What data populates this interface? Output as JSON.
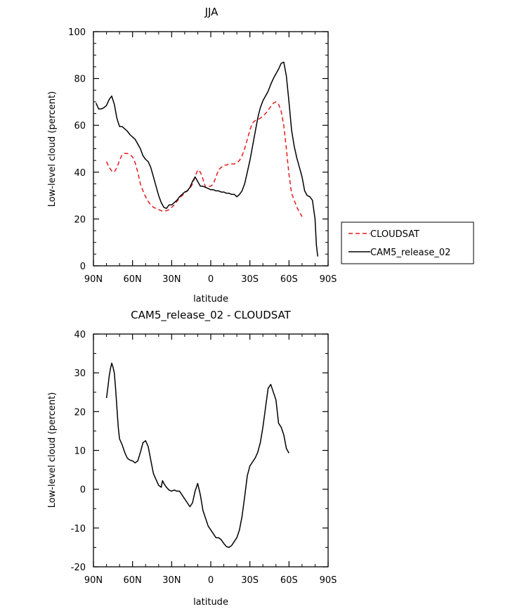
{
  "chart_data": [
    {
      "type": "line",
      "title": "JJA",
      "xlabel": "latitude",
      "ylabel": "Low-level cloud (percent)",
      "xlim": [
        90,
        -90
      ],
      "ylim": [
        0,
        100
      ],
      "xticks": [
        {
          "value": 90,
          "label": "90N"
        },
        {
          "value": 60,
          "label": "60N"
        },
        {
          "value": 30,
          "label": "30N"
        },
        {
          "value": 0,
          "label": "0"
        },
        {
          "value": -30,
          "label": "30S"
        },
        {
          "value": -60,
          "label": "60S"
        },
        {
          "value": -90,
          "label": "90S"
        }
      ],
      "yticks": [
        0,
        20,
        40,
        60,
        80,
        100
      ],
      "legend": "right",
      "series": [
        {
          "name": "CLOUDSAT",
          "color": "#e41a1c",
          "dash": "dashed",
          "points": [
            [
              80,
              44.5
            ],
            [
              78,
              42
            ],
            [
              76,
              40.5
            ],
            [
              74,
              40
            ],
            [
              72,
              42
            ],
            [
              70,
              45
            ],
            [
              68,
              47.5
            ],
            [
              66,
              48
            ],
            [
              64,
              48
            ],
            [
              62,
              47.5
            ],
            [
              60,
              46.5
            ],
            [
              58,
              44
            ],
            [
              56,
              40
            ],
            [
              54,
              35
            ],
            [
              52,
              32
            ],
            [
              50,
              29.5
            ],
            [
              48,
              27.5
            ],
            [
              46,
              26
            ],
            [
              44,
              25
            ],
            [
              42,
              24.5
            ],
            [
              40,
              24
            ],
            [
              38,
              23.5
            ],
            [
              36,
              23.5
            ],
            [
              34,
              23.5
            ],
            [
              32,
              24
            ],
            [
              30,
              25
            ],
            [
              28,
              26
            ],
            [
              26,
              27.5
            ],
            [
              24,
              29
            ],
            [
              22,
              30
            ],
            [
              20,
              31
            ],
            [
              18,
              32
            ],
            [
              16,
              33
            ],
            [
              14,
              35
            ],
            [
              12,
              38
            ],
            [
              10,
              41
            ],
            [
              8,
              40
            ],
            [
              6,
              37
            ],
            [
              4,
              33.5
            ],
            [
              2,
              34
            ],
            [
              0,
              34
            ],
            [
              -2,
              35
            ],
            [
              -4,
              38
            ],
            [
              -6,
              41
            ],
            [
              -8,
              42
            ],
            [
              -10,
              43
            ],
            [
              -12,
              43
            ],
            [
              -14,
              43.5
            ],
            [
              -16,
              43.5
            ],
            [
              -18,
              43.5
            ],
            [
              -20,
              44
            ],
            [
              -22,
              45
            ],
            [
              -24,
              47
            ],
            [
              -26,
              50
            ],
            [
              -28,
              54
            ],
            [
              -30,
              58
            ],
            [
              -32,
              61
            ],
            [
              -34,
              62
            ],
            [
              -36,
              62.5
            ],
            [
              -38,
              63
            ],
            [
              -40,
              64
            ],
            [
              -42,
              65
            ],
            [
              -44,
              66.5
            ],
            [
              -46,
              68
            ],
            [
              -48,
              69.5
            ],
            [
              -50,
              70
            ],
            [
              -52,
              69
            ],
            [
              -54,
              66
            ],
            [
              -56,
              60
            ],
            [
              -58,
              50
            ],
            [
              -60,
              39
            ],
            [
              -62,
              31
            ],
            [
              -64,
              28
            ],
            [
              -66,
              25
            ],
            [
              -68,
              23
            ],
            [
              -70,
              21
            ]
          ]
        },
        {
          "name": "CAM5_release_02",
          "color": "#000000",
          "dash": "solid",
          "points": [
            [
              88,
              69.5
            ],
            [
              86,
              67
            ],
            [
              84,
              67
            ],
            [
              82,
              67.5
            ],
            [
              80,
              68.5
            ],
            [
              78,
              71
            ],
            [
              76,
              72.5
            ],
            [
              74,
              69
            ],
            [
              72,
              63
            ],
            [
              70,
              59.5
            ],
            [
              68,
              59.5
            ],
            [
              66,
              58.5
            ],
            [
              64,
              57.5
            ],
            [
              62,
              56
            ],
            [
              60,
              55
            ],
            [
              58,
              54
            ],
            [
              56,
              52
            ],
            [
              54,
              50
            ],
            [
              52,
              47
            ],
            [
              50,
              45.5
            ],
            [
              48,
              44.5
            ],
            [
              46,
              42
            ],
            [
              44,
              38
            ],
            [
              42,
              34
            ],
            [
              40,
              30
            ],
            [
              38,
              27
            ],
            [
              36,
              25
            ],
            [
              34,
              24.5
            ],
            [
              32,
              26
            ],
            [
              30,
              26
            ],
            [
              28,
              27
            ],
            [
              26,
              28
            ],
            [
              24,
              29.5
            ],
            [
              22,
              30.5
            ],
            [
              20,
              31.5
            ],
            [
              18,
              32
            ],
            [
              16,
              33.5
            ],
            [
              14,
              36
            ],
            [
              12,
              38
            ],
            [
              10,
              36
            ],
            [
              8,
              34
            ],
            [
              6,
              34
            ],
            [
              4,
              33.5
            ],
            [
              2,
              33
            ],
            [
              0,
              32.5
            ],
            [
              -2,
              32.5
            ],
            [
              -4,
              32
            ],
            [
              -6,
              32
            ],
            [
              -8,
              31.5
            ],
            [
              -10,
              31.5
            ],
            [
              -12,
              31
            ],
            [
              -14,
              31
            ],
            [
              -16,
              30.5
            ],
            [
              -18,
              30.5
            ],
            [
              -20,
              29.5
            ],
            [
              -22,
              30.5
            ],
            [
              -24,
              32
            ],
            [
              -26,
              35
            ],
            [
              -28,
              40
            ],
            [
              -30,
              45
            ],
            [
              -32,
              51
            ],
            [
              -34,
              57
            ],
            [
              -36,
              63
            ],
            [
              -38,
              67.5
            ],
            [
              -40,
              70.5
            ],
            [
              -42,
              72.5
            ],
            [
              -44,
              74.5
            ],
            [
              -46,
              77.5
            ],
            [
              -48,
              80
            ],
            [
              -50,
              82
            ],
            [
              -52,
              84
            ],
            [
              -54,
              86.5
            ],
            [
              -56,
              87
            ],
            [
              -58,
              81
            ],
            [
              -60,
              70
            ],
            [
              -62,
              58
            ],
            [
              -64,
              51
            ],
            [
              -66,
              46
            ],
            [
              -68,
              42
            ],
            [
              -70,
              38
            ],
            [
              -72,
              32
            ],
            [
              -74,
              30
            ],
            [
              -76,
              29.5
            ],
            [
              -78,
              28
            ],
            [
              -80,
              20
            ],
            [
              -81,
              9
            ],
            [
              -82,
              4
            ]
          ]
        }
      ]
    },
    {
      "type": "line",
      "title": "CAM5_release_02 - CLOUDSAT",
      "xlabel": "latitude",
      "ylabel": "Low-level cloud (percent)",
      "xlim": [
        90,
        -90
      ],
      "ylim": [
        -20,
        40
      ],
      "xticks": [
        {
          "value": 90,
          "label": "90N"
        },
        {
          "value": 60,
          "label": "60N"
        },
        {
          "value": 30,
          "label": "30N"
        },
        {
          "value": 0,
          "label": "0"
        },
        {
          "value": -30,
          "label": "30S"
        },
        {
          "value": -60,
          "label": "60S"
        },
        {
          "value": -90,
          "label": "90S"
        }
      ],
      "yticks": [
        -20,
        -10,
        0,
        10,
        20,
        30,
        40
      ],
      "series": [
        {
          "color": "#000000",
          "dash": "solid",
          "points": [
            [
              80,
              23.5
            ],
            [
              79,
              26
            ],
            [
              78,
              29
            ],
            [
              77,
              31
            ],
            [
              76,
              32.5
            ],
            [
              75,
              31.5
            ],
            [
              74,
              30
            ],
            [
              73,
              26
            ],
            [
              72,
              21
            ],
            [
              71,
              16
            ],
            [
              70,
              13
            ],
            [
              68,
              11.5
            ],
            [
              66,
              9.5
            ],
            [
              64,
              8
            ],
            [
              62,
              7.5
            ],
            [
              60,
              7.3
            ],
            [
              58,
              6.8
            ],
            [
              56,
              7.3
            ],
            [
              54,
              9.5
            ],
            [
              52,
              12
            ],
            [
              50,
              12.5
            ],
            [
              48,
              11
            ],
            [
              46,
              7.5
            ],
            [
              44,
              4
            ],
            [
              42,
              2.5
            ],
            [
              40,
              1
            ],
            [
              38,
              0.5
            ],
            [
              37,
              2.2
            ],
            [
              36,
              1.5
            ],
            [
              34,
              0.5
            ],
            [
              32,
              -0.2
            ],
            [
              30,
              -0.5
            ],
            [
              28,
              -0.2
            ],
            [
              26,
              -0.5
            ],
            [
              24,
              -0.5
            ],
            [
              22,
              -1.5
            ],
            [
              20,
              -2.5
            ],
            [
              18,
              -3.5
            ],
            [
              16,
              -4.5
            ],
            [
              14,
              -3.5
            ],
            [
              12,
              -0.5
            ],
            [
              10,
              1.5
            ],
            [
              8,
              -1.5
            ],
            [
              6,
              -5.5
            ],
            [
              4,
              -7.5
            ],
            [
              2,
              -9.5
            ],
            [
              0,
              -10.5
            ],
            [
              -2,
              -11.5
            ],
            [
              -4,
              -12.5
            ],
            [
              -6,
              -12.5
            ],
            [
              -8,
              -13
            ],
            [
              -10,
              -14
            ],
            [
              -12,
              -14.8
            ],
            [
              -14,
              -15
            ],
            [
              -16,
              -14.5
            ],
            [
              -18,
              -13.5
            ],
            [
              -20,
              -12.5
            ],
            [
              -22,
              -10.5
            ],
            [
              -24,
              -7
            ],
            [
              -26,
              -2
            ],
            [
              -28,
              3.5
            ],
            [
              -30,
              6
            ],
            [
              -32,
              7
            ],
            [
              -34,
              8
            ],
            [
              -36,
              9.5
            ],
            [
              -38,
              12
            ],
            [
              -40,
              16
            ],
            [
              -42,
              21
            ],
            [
              -44,
              26
            ],
            [
              -46,
              27
            ],
            [
              -48,
              25
            ],
            [
              -50,
              23
            ],
            [
              -52,
              17
            ],
            [
              -54,
              16
            ],
            [
              -56,
              14
            ],
            [
              -58,
              10.5
            ],
            [
              -60,
              9.3
            ]
          ]
        }
      ]
    }
  ]
}
